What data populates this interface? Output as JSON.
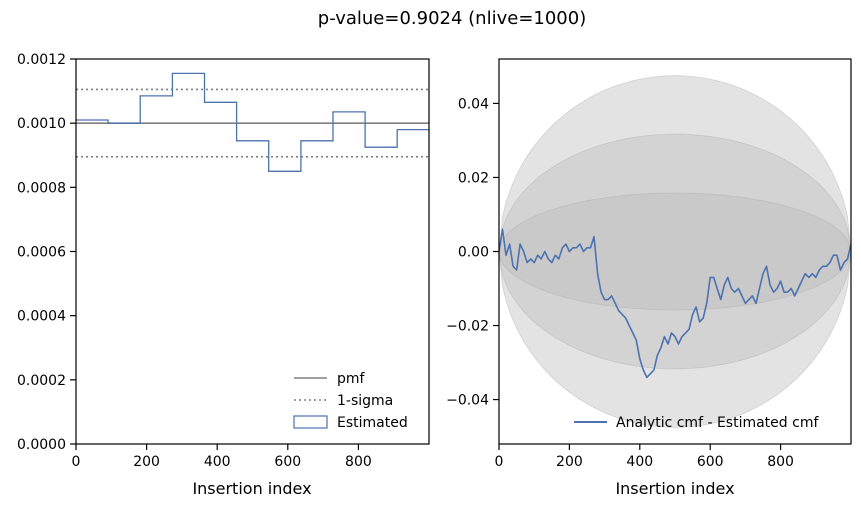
{
  "figure": {
    "title": "p-value=0.9024 (nlive=1000)"
  },
  "chart_data": [
    {
      "type": "step",
      "xlabel": "Insertion index",
      "ylabel": "",
      "xlim": [
        0,
        1000
      ],
      "ylim": [
        0,
        0.0012
      ],
      "xticks": [
        0,
        200,
        400,
        600,
        800
      ],
      "xtick_labels": [
        "0",
        "200",
        "400",
        "600",
        "800"
      ],
      "yticks": [
        0,
        0.0002,
        0.0004,
        0.0006,
        0.0008,
        0.001,
        0.0012
      ],
      "ytick_labels": [
        "0.0000",
        "0.0002",
        "0.0004",
        "0.0006",
        "0.0008",
        "0.0010",
        "0.0012"
      ],
      "pmf": 0.001,
      "sigma_band": [
        0.000895,
        0.001105
      ],
      "bin_edges": [
        0,
        91,
        182,
        273,
        364,
        455,
        546,
        637,
        728,
        819,
        910,
        1000
      ],
      "estimated": [
        0.00101,
        0.001,
        0.001085,
        0.001155,
        0.001065,
        0.000945,
        0.00085,
        0.000945,
        0.001035,
        0.000925,
        0.00098
      ],
      "colors": {
        "pmf": "#808080",
        "sigma": "#808080",
        "estimated": "#4c72b0"
      },
      "legend": {
        "position": "lower-right",
        "entries": [
          "pmf",
          "1-sigma",
          "Estimated"
        ]
      }
    },
    {
      "type": "line",
      "xlabel": "Insertion index",
      "ylabel": "",
      "xlim": [
        0,
        1000
      ],
      "ylim": [
        -0.052,
        0.052
      ],
      "xticks": [
        0,
        200,
        400,
        600,
        800
      ],
      "xtick_labels": [
        "0",
        "200",
        "400",
        "600",
        "800"
      ],
      "yticks": [
        -0.04,
        -0.02,
        0,
        0.02,
        0.04
      ],
      "ytick_labels": [
        "−0.04",
        "−0.02",
        "0.00",
        "0.02",
        "0.04"
      ],
      "bands": [
        {
          "sigma": 3,
          "half_width_max": 0.0475
        },
        {
          "sigma": 2,
          "half_width_max": 0.0317
        },
        {
          "sigma": 1,
          "half_width_max": 0.0158
        }
      ],
      "band_color": "#bdbdbd",
      "series": [
        {
          "name": "Analytic cmf - Estimated cmf",
          "color": "#4c72b0",
          "x": [
            0,
            10,
            20,
            30,
            40,
            50,
            60,
            70,
            80,
            90,
            100,
            110,
            120,
            130,
            140,
            150,
            160,
            170,
            180,
            190,
            200,
            210,
            220,
            230,
            240,
            250,
            260,
            270,
            280,
            290,
            300,
            310,
            320,
            330,
            340,
            350,
            360,
            370,
            380,
            390,
            400,
            410,
            420,
            430,
            440,
            450,
            460,
            470,
            480,
            490,
            500,
            510,
            520,
            530,
            540,
            550,
            560,
            570,
            580,
            590,
            600,
            610,
            620,
            630,
            640,
            650,
            660,
            670,
            680,
            690,
            700,
            710,
            720,
            730,
            740,
            750,
            760,
            770,
            780,
            790,
            800,
            810,
            820,
            830,
            840,
            850,
            860,
            870,
            880,
            890,
            900,
            910,
            920,
            930,
            940,
            950,
            960,
            970,
            980,
            990,
            1000
          ],
          "y": [
            0.0,
            0.006,
            -0.001,
            0.002,
            -0.004,
            -0.005,
            0.002,
            0.0,
            -0.003,
            -0.002,
            -0.003,
            -0.001,
            -0.002,
            0.0,
            -0.002,
            -0.003,
            -0.001,
            -0.002,
            0.001,
            0.002,
            0.0,
            0.001,
            0.001,
            0.002,
            0.0,
            0.001,
            0.001,
            0.004,
            -0.006,
            -0.011,
            -0.013,
            -0.013,
            -0.012,
            -0.014,
            -0.016,
            -0.017,
            -0.018,
            -0.02,
            -0.022,
            -0.024,
            -0.029,
            -0.032,
            -0.034,
            -0.033,
            -0.032,
            -0.028,
            -0.026,
            -0.023,
            -0.025,
            -0.022,
            -0.023,
            -0.025,
            -0.023,
            -0.022,
            -0.021,
            -0.017,
            -0.015,
            -0.019,
            -0.018,
            -0.014,
            -0.007,
            -0.007,
            -0.01,
            -0.013,
            -0.009,
            -0.007,
            -0.01,
            -0.011,
            -0.01,
            -0.012,
            -0.014,
            -0.013,
            -0.012,
            -0.014,
            -0.01,
            -0.006,
            -0.004,
            -0.009,
            -0.011,
            -0.01,
            -0.008,
            -0.011,
            -0.011,
            -0.01,
            -0.012,
            -0.01,
            -0.008,
            -0.006,
            -0.007,
            -0.006,
            -0.007,
            -0.005,
            -0.004,
            -0.004,
            -0.003,
            -0.001,
            -0.001,
            -0.005,
            -0.003,
            -0.002,
            0.002
          ]
        }
      ],
      "legend": {
        "position": "lower-right",
        "entries": [
          "Analytic cmf - Estimated cmf"
        ]
      }
    }
  ]
}
